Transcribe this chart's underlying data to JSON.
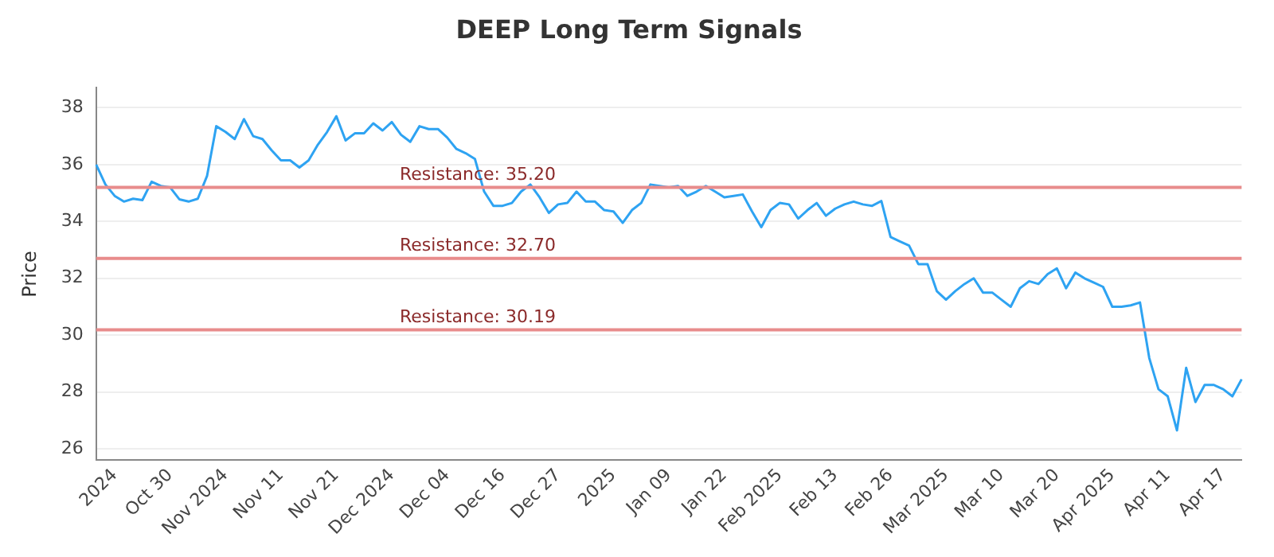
{
  "chart_data": {
    "type": "line",
    "title": "DEEP Long Term Signals",
    "ylabel": "Price",
    "categories": [
      null,
      null,
      "2024",
      null,
      null,
      null,
      null,
      null,
      "Oct 30",
      null,
      null,
      null,
      null,
      null,
      "Nov 2024",
      null,
      null,
      null,
      null,
      null,
      "Nov 11",
      null,
      null,
      null,
      null,
      null,
      "Nov 21",
      null,
      null,
      null,
      null,
      null,
      "Dec 2024",
      null,
      null,
      null,
      null,
      null,
      "Dec 04",
      null,
      null,
      null,
      null,
      null,
      "Dec 16",
      null,
      null,
      null,
      null,
      null,
      "Dec 27",
      null,
      null,
      null,
      null,
      null,
      "2025",
      null,
      null,
      null,
      null,
      null,
      "Jan 09",
      null,
      null,
      null,
      null,
      null,
      "Jan 22",
      null,
      null,
      null,
      null,
      null,
      "Feb 2025",
      null,
      null,
      null,
      null,
      null,
      "Feb 13",
      null,
      null,
      null,
      null,
      null,
      "Feb 26",
      null,
      null,
      null,
      null,
      null,
      "Mar 2025",
      null,
      null,
      null,
      null,
      null,
      "Mar 10",
      null,
      null,
      null,
      null,
      null,
      "Mar 20",
      null,
      null,
      null,
      null,
      null,
      "Apr 2025",
      null,
      null,
      null,
      null,
      null,
      "Apr 11",
      null,
      null,
      null,
      null,
      null,
      "Apr 17",
      null,
      null
    ],
    "series": [
      {
        "color": "#2ea3f2",
        "values": [
          36.0,
          35.3,
          34.9,
          34.7,
          34.8,
          34.75,
          35.4,
          35.25,
          35.2,
          34.78,
          34.7,
          34.8,
          35.6,
          37.35,
          37.15,
          36.9,
          37.6,
          37.0,
          36.9,
          36.5,
          36.15,
          36.15,
          35.9,
          36.15,
          36.7,
          37.15,
          37.7,
          36.85,
          37.1,
          37.1,
          37.45,
          37.2,
          37.5,
          37.05,
          36.8,
          37.35,
          37.25,
          37.25,
          36.95,
          36.55,
          36.4,
          36.2,
          35.05,
          34.55,
          34.55,
          34.65,
          35.05,
          35.3,
          34.85,
          34.3,
          34.6,
          34.65,
          35.05,
          34.7,
          34.7,
          34.4,
          34.35,
          33.95,
          34.4,
          34.65,
          35.3,
          35.25,
          35.2,
          35.25,
          34.9,
          35.05,
          35.25,
          35.05,
          34.85,
          34.9,
          34.95,
          34.35,
          33.8,
          34.4,
          34.65,
          34.6,
          34.1,
          34.4,
          34.65,
          34.2,
          34.45,
          34.6,
          34.7,
          34.6,
          34.55,
          34.72,
          33.45,
          33.3,
          33.15,
          32.5,
          32.5,
          31.55,
          31.25,
          31.55,
          31.8,
          32.0,
          31.5,
          31.5,
          31.25,
          31.0,
          31.65,
          31.9,
          31.8,
          32.15,
          32.35,
          31.65,
          32.2,
          32.0,
          31.85,
          31.7,
          31.0,
          31.0,
          31.05,
          31.15,
          29.2,
          28.1,
          27.85,
          26.65,
          28.85,
          27.65,
          28.25,
          28.25,
          28.1,
          27.85,
          28.45
        ]
      }
    ],
    "ylim": [
      25.6,
      38.7
    ],
    "yticks": [
      26,
      28,
      30,
      32,
      34,
      36,
      38
    ],
    "ref_lines": [
      {
        "axis": "y",
        "value": 35.2,
        "label": "Resistance: 35.20",
        "color": "#e88c8c"
      },
      {
        "axis": "y",
        "value": 32.7,
        "label": "Resistance: 32.70",
        "color": "#e88c8c"
      },
      {
        "axis": "y",
        "value": 30.19,
        "label": "Resistance: 30.19",
        "color": "#e88c8c"
      }
    ],
    "grid": "y",
    "legend": false,
    "marker": "none",
    "line_style": "solid"
  }
}
